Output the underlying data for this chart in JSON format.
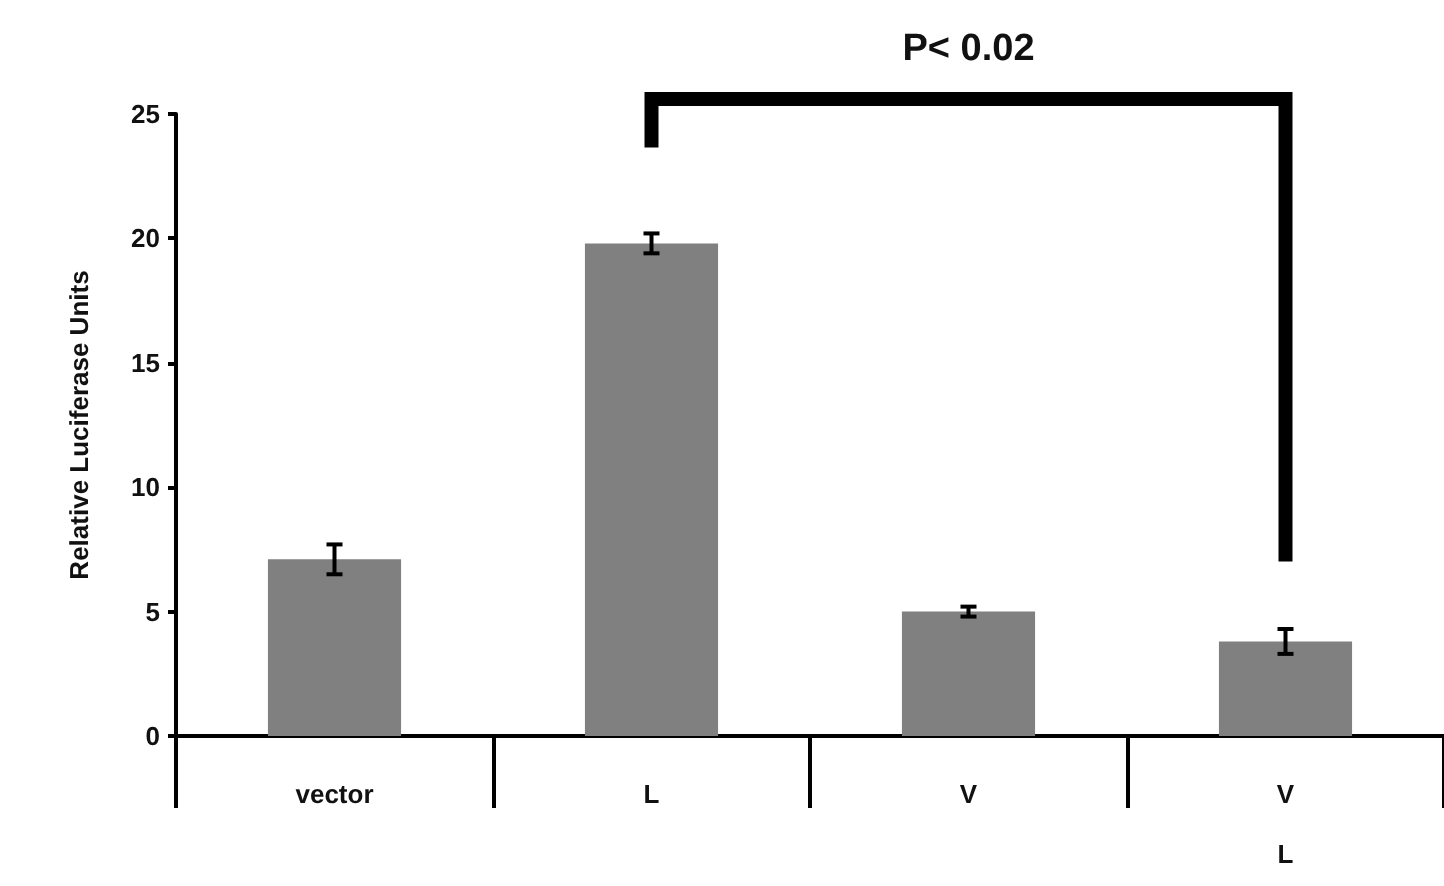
{
  "chart_data": {
    "type": "bar",
    "ylabel": "Relative Luciferase Units",
    "categories": [
      "vector",
      "L",
      "V",
      "V\nL"
    ],
    "values": [
      7.1,
      19.8,
      5.0,
      3.8
    ],
    "errors": [
      0.6,
      0.4,
      0.2,
      0.5
    ],
    "color": "#808080",
    "ylim": [
      0,
      25
    ],
    "yticks": [
      0,
      5,
      10,
      15,
      20,
      25
    ],
    "grid": false,
    "annotations": [
      "P< 0.02"
    ]
  }
}
